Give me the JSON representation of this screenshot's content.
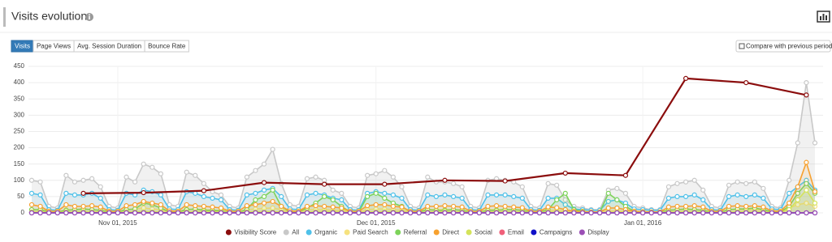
{
  "chart_data": {
    "type": "line",
    "title": "Visits evolution",
    "x": [
      "2015-10-22",
      "2015-10-23",
      "2015-10-24",
      "2015-10-25",
      "2015-10-26",
      "2015-10-27",
      "2015-10-28",
      "2015-10-29",
      "2015-10-30",
      "2015-10-31",
      "2015-11-01",
      "2015-11-02",
      "2015-11-03",
      "2015-11-04",
      "2015-11-05",
      "2015-11-06",
      "2015-11-07",
      "2015-11-08",
      "2015-11-09",
      "2015-11-10",
      "2015-11-11",
      "2015-11-12",
      "2015-11-13",
      "2015-11-14",
      "2015-11-15",
      "2015-11-16",
      "2015-11-17",
      "2015-11-18",
      "2015-11-19",
      "2015-11-20",
      "2015-11-21",
      "2015-11-22",
      "2015-11-23",
      "2015-11-24",
      "2015-11-25",
      "2015-11-26",
      "2015-11-27",
      "2015-11-28",
      "2015-11-29",
      "2015-11-30",
      "2015-12-01",
      "2015-12-02",
      "2015-12-03",
      "2015-12-04",
      "2015-12-05",
      "2015-12-06",
      "2015-12-07",
      "2015-12-08",
      "2015-12-09",
      "2015-12-10",
      "2015-12-11",
      "2015-12-12",
      "2015-12-13",
      "2015-12-14",
      "2015-12-15",
      "2015-12-16",
      "2015-12-17",
      "2015-12-18",
      "2015-12-19",
      "2015-12-20",
      "2015-12-21",
      "2015-12-22",
      "2015-12-23",
      "2015-12-24",
      "2015-12-25",
      "2015-12-26",
      "2015-12-27",
      "2015-12-28",
      "2015-12-29",
      "2015-12-30",
      "2015-12-31",
      "2016-01-01",
      "2016-01-02",
      "2016-01-03",
      "2016-01-04",
      "2016-01-05",
      "2016-01-06",
      "2016-01-07",
      "2016-01-08",
      "2016-01-09",
      "2016-01-10",
      "2016-01-11",
      "2016-01-12",
      "2016-01-13",
      "2016-01-14",
      "2016-01-15",
      "2016-01-16",
      "2016-01-17",
      "2016-01-18",
      "2016-01-19",
      "2016-01-20",
      "2016-01-21"
    ],
    "xlim": [
      "2015-10-22",
      "2016-01-21"
    ],
    "xticks": [
      {
        "value": "2015-11-01",
        "label": "Nov 01, 2015"
      },
      {
        "value": "2015-12-01",
        "label": "Dec 01, 2015"
      },
      {
        "value": "2016-01-01",
        "label": "Jan 01, 2016"
      }
    ],
    "ylim": [
      0,
      450
    ],
    "yticks": [
      0,
      50,
      100,
      150,
      200,
      250,
      300,
      350,
      400,
      450
    ],
    "grid": true,
    "series": [
      {
        "name": "Visibility Score",
        "color": "#8b0d0d",
        "x": [
          "2015-10-28",
          "2015-11-04",
          "2015-11-11",
          "2015-11-18",
          "2015-11-25",
          "2015-12-02",
          "2015-12-09",
          "2015-12-16",
          "2015-12-23",
          "2015-12-30",
          "2016-01-06",
          "2016-01-13",
          "2016-01-20"
        ],
        "values": [
          60,
          62,
          68,
          93,
          88,
          88,
          100,
          98,
          122,
          115,
          413,
          400,
          362
        ]
      },
      {
        "name": "All",
        "color": "#c8c8c8",
        "values": [
          100,
          95,
          20,
          15,
          115,
          95,
          100,
          105,
          80,
          20,
          15,
          110,
          95,
          150,
          140,
          120,
          25,
          20,
          125,
          115,
          90,
          65,
          55,
          20,
          15,
          110,
          130,
          150,
          195,
          90,
          25,
          20,
          105,
          110,
          100,
          70,
          60,
          20,
          15,
          115,
          120,
          130,
          110,
          80,
          20,
          15,
          110,
          95,
          95,
          90,
          80,
          20,
          15,
          100,
          105,
          100,
          95,
          80,
          20,
          15,
          90,
          85,
          40,
          20,
          15,
          10,
          10,
          70,
          75,
          60,
          20,
          15,
          10,
          10,
          80,
          90,
          95,
          100,
          70,
          20,
          15,
          85,
          95,
          90,
          95,
          75,
          20,
          15,
          100,
          215,
          400,
          215
        ]
      },
      {
        "name": "Organic",
        "color": "#4fc1e9",
        "values": [
          60,
          55,
          10,
          8,
          60,
          55,
          55,
          60,
          45,
          10,
          8,
          60,
          55,
          70,
          65,
          55,
          12,
          10,
          65,
          60,
          50,
          45,
          40,
          10,
          8,
          55,
          60,
          70,
          75,
          50,
          12,
          10,
          55,
          60,
          55,
          45,
          40,
          10,
          8,
          60,
          65,
          60,
          55,
          45,
          10,
          8,
          55,
          50,
          55,
          50,
          45,
          10,
          8,
          55,
          55,
          55,
          50,
          45,
          10,
          8,
          45,
          45,
          25,
          12,
          10,
          8,
          8,
          35,
          40,
          30,
          12,
          10,
          8,
          8,
          45,
          50,
          50,
          55,
          40,
          10,
          8,
          50,
          55,
          50,
          55,
          45,
          12,
          10,
          60,
          80,
          100,
          70
        ]
      },
      {
        "name": "Paid Search",
        "color": "#f6e27f",
        "values": [
          10,
          8,
          3,
          2,
          10,
          10,
          12,
          10,
          8,
          3,
          2,
          10,
          12,
          15,
          12,
          10,
          3,
          2,
          12,
          10,
          10,
          8,
          8,
          3,
          2,
          10,
          12,
          14,
          15,
          10,
          3,
          2,
          10,
          10,
          10,
          8,
          8,
          3,
          2,
          10,
          12,
          12,
          10,
          8,
          3,
          2,
          10,
          10,
          10,
          10,
          8,
          3,
          2,
          10,
          10,
          10,
          10,
          8,
          3,
          2,
          8,
          8,
          5,
          3,
          2,
          2,
          2,
          6,
          6,
          5,
          3,
          2,
          2,
          2,
          8,
          10,
          10,
          10,
          8,
          3,
          2,
          10,
          10,
          10,
          10,
          8,
          3,
          2,
          15,
          25,
          30,
          20
        ]
      },
      {
        "name": "Referral",
        "color": "#7dd35a",
        "values": [
          10,
          10,
          3,
          3,
          8,
          10,
          12,
          10,
          8,
          3,
          3,
          10,
          12,
          30,
          25,
          15,
          3,
          3,
          10,
          12,
          8,
          8,
          6,
          2,
          2,
          10,
          40,
          50,
          70,
          20,
          3,
          3,
          15,
          30,
          50,
          40,
          20,
          3,
          3,
          50,
          60,
          45,
          30,
          20,
          3,
          3,
          10,
          8,
          8,
          10,
          8,
          2,
          2,
          8,
          8,
          10,
          10,
          8,
          2,
          2,
          10,
          40,
          60,
          10,
          5,
          2,
          2,
          60,
          40,
          20,
          5,
          3,
          2,
          2,
          8,
          10,
          12,
          10,
          8,
          2,
          2,
          10,
          12,
          12,
          15,
          10,
          3,
          3,
          20,
          60,
          90,
          60
        ]
      },
      {
        "name": "Direct",
        "color": "#f7a12f",
        "values": [
          25,
          20,
          5,
          5,
          25,
          20,
          20,
          22,
          18,
          5,
          5,
          22,
          25,
          35,
          30,
          25,
          6,
          5,
          25,
          22,
          20,
          18,
          15,
          5,
          5,
          22,
          25,
          30,
          35,
          20,
          6,
          5,
          20,
          22,
          20,
          18,
          15,
          5,
          5,
          22,
          25,
          25,
          20,
          18,
          5,
          5,
          20,
          20,
          22,
          20,
          18,
          5,
          5,
          20,
          22,
          20,
          18,
          16,
          5,
          5,
          18,
          16,
          10,
          5,
          4,
          3,
          3,
          15,
          15,
          10,
          5,
          4,
          3,
          3,
          18,
          20,
          20,
          22,
          18,
          5,
          5,
          20,
          22,
          20,
          22,
          18,
          6,
          5,
          30,
          80,
          155,
          65
        ]
      },
      {
        "name": "Social",
        "color": "#d4e35a",
        "values": [
          3,
          3,
          1,
          1,
          3,
          3,
          4,
          3,
          3,
          1,
          1,
          3,
          3,
          4,
          3,
          3,
          1,
          1,
          3,
          3,
          4,
          3,
          3,
          1,
          1,
          3,
          3,
          4,
          3,
          3,
          1,
          1,
          3,
          3,
          4,
          3,
          3,
          1,
          1,
          3,
          3,
          4,
          3,
          3,
          1,
          1,
          3,
          3,
          4,
          3,
          3,
          1,
          1,
          3,
          3,
          4,
          3,
          3,
          1,
          1,
          3,
          3,
          2,
          1,
          1,
          1,
          1,
          2,
          2,
          2,
          1,
          1,
          1,
          1,
          3,
          3,
          4,
          3,
          3,
          1,
          1,
          3,
          3,
          4,
          3,
          3,
          1,
          1,
          10,
          40,
          70,
          30
        ]
      },
      {
        "name": "Email",
        "color": "#f0607a",
        "values": [
          0,
          0,
          0,
          0,
          0,
          0,
          0,
          0,
          0,
          0,
          0,
          0,
          0,
          0,
          0,
          0,
          0,
          0,
          0,
          0,
          0,
          0,
          0,
          0,
          0,
          0,
          0,
          0,
          0,
          0,
          0,
          0,
          0,
          0,
          0,
          0,
          0,
          0,
          0,
          0,
          0,
          0,
          0,
          0,
          0,
          0,
          0,
          0,
          0,
          0,
          0,
          0,
          0,
          0,
          0,
          0,
          0,
          0,
          0,
          0,
          0,
          0,
          0,
          0,
          0,
          0,
          0,
          0,
          0,
          0,
          0,
          0,
          0,
          0,
          0,
          0,
          0,
          0,
          0,
          0,
          0,
          0,
          0,
          0,
          0,
          0,
          0,
          0,
          0,
          0,
          0,
          0
        ]
      },
      {
        "name": "Campaigns",
        "color": "#1010c8",
        "values": [
          0,
          0,
          0,
          0,
          0,
          0,
          0,
          0,
          0,
          0,
          0,
          0,
          0,
          0,
          0,
          0,
          0,
          0,
          0,
          0,
          0,
          0,
          0,
          0,
          0,
          0,
          0,
          0,
          0,
          0,
          0,
          0,
          0,
          0,
          0,
          0,
          0,
          0,
          0,
          0,
          0,
          0,
          0,
          0,
          0,
          0,
          0,
          0,
          0,
          0,
          0,
          0,
          0,
          0,
          0,
          0,
          0,
          0,
          0,
          0,
          0,
          0,
          0,
          0,
          0,
          0,
          0,
          0,
          0,
          0,
          0,
          0,
          0,
          0,
          0,
          0,
          0,
          0,
          0,
          0,
          0,
          0,
          0,
          0,
          0,
          0,
          0,
          0,
          0,
          0,
          0,
          0
        ]
      },
      {
        "name": "Display",
        "color": "#9b4fb5",
        "values": [
          0,
          0,
          0,
          0,
          0,
          0,
          0,
          0,
          0,
          0,
          0,
          0,
          0,
          0,
          0,
          0,
          0,
          0,
          0,
          0,
          0,
          0,
          0,
          0,
          0,
          0,
          0,
          0,
          0,
          0,
          0,
          0,
          0,
          0,
          0,
          0,
          0,
          0,
          0,
          0,
          0,
          0,
          0,
          0,
          0,
          0,
          0,
          0,
          0,
          0,
          0,
          0,
          0,
          0,
          0,
          0,
          0,
          0,
          0,
          0,
          0,
          0,
          0,
          0,
          0,
          0,
          0,
          0,
          0,
          0,
          0,
          0,
          0,
          0,
          0,
          0,
          0,
          0,
          0,
          0,
          0,
          0,
          0,
          0,
          0,
          0,
          0,
          0,
          0,
          0,
          0,
          0
        ]
      }
    ]
  },
  "ui": {
    "tabs": [
      "Visits",
      "Page Views",
      "Avg. Session Duration",
      "Bounce Rate"
    ],
    "compare_button": "Compare with previous period"
  }
}
